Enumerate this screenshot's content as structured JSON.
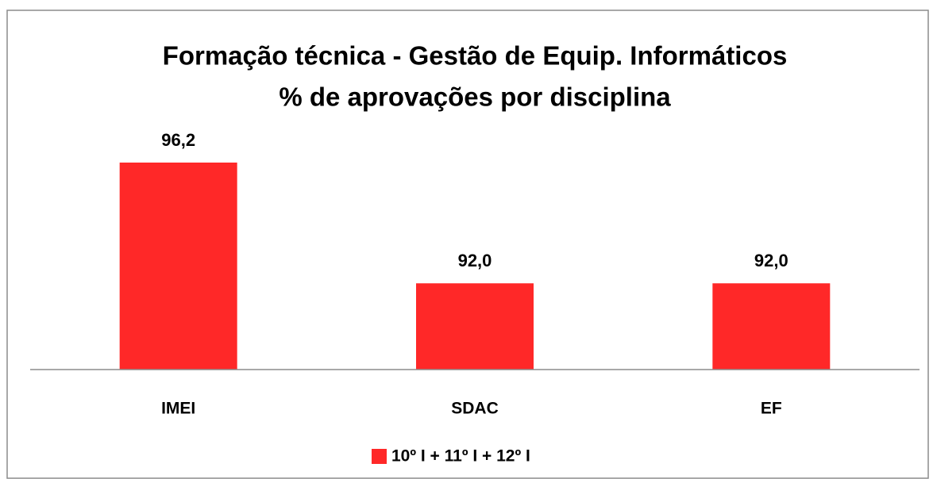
{
  "chart_data": {
    "type": "bar",
    "title": "Formação técnica - Gestão de Equip. Informáticos",
    "subtitle": "% de aprovações por disciplina",
    "categories": [
      "IMEI",
      "SDAC",
      "EF"
    ],
    "series": [
      {
        "name": "10º I + 11º I + 12º I",
        "color": "#ff2828",
        "values": [
          96.2,
          92.0,
          92.0
        ],
        "value_labels": [
          "96,2",
          "92,0",
          "92,0"
        ]
      }
    ],
    "ylim": [
      89,
      97
    ],
    "legend": "bottom"
  }
}
